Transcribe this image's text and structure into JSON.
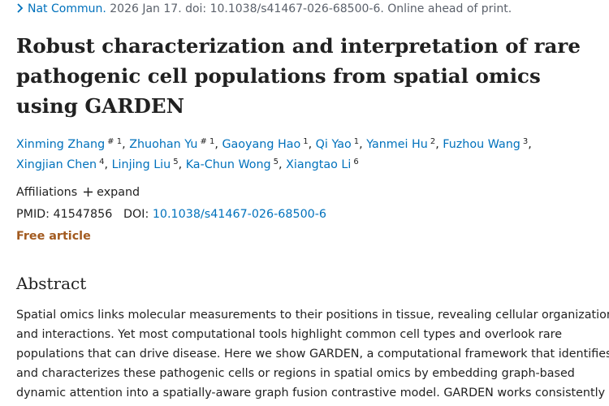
{
  "citation": {
    "journal": "Nat Commun.",
    "details": "2026 Jan 17. doi: 10.1038/s41467-026-68500-6. Online ahead of print."
  },
  "title": "Robust characterization and interpretation of rare pathogenic cell populations from spatial omics using GARDEN",
  "authors": [
    {
      "name": "Xinming Zhang",
      "sup": "# 1",
      "sep": ","
    },
    {
      "name": "Zhuohan Yu",
      "sup": "# 1",
      "sep": ","
    },
    {
      "name": "Gaoyang Hao",
      "sup": "1",
      "sep": ","
    },
    {
      "name": "Qi Yao",
      "sup": "1",
      "sep": ","
    },
    {
      "name": "Yanmei Hu",
      "sup": "2",
      "sep": ","
    },
    {
      "name": "Fuzhou Wang",
      "sup": "3",
      "sep": ","
    },
    {
      "name": "Xingjian Chen",
      "sup": "4",
      "sep": ","
    },
    {
      "name": "Linjing Liu",
      "sup": "5",
      "sep": ","
    },
    {
      "name": "Ka-Chun Wong",
      "sup": "5",
      "sep": ","
    },
    {
      "name": "Xiangtao Li",
      "sup": "6"
    }
  ],
  "affiliations": {
    "label": "Affiliations",
    "toggle": "expand"
  },
  "identifiers": {
    "pmid_label": "PMID:",
    "pmid": "41547856",
    "doi_label": "DOI:",
    "doi": "10.1038/s41467-026-68500-6"
  },
  "free_article": "Free article",
  "abstract": {
    "heading": "Abstract",
    "lines": [
      "Spatial omics links molecular measurements to their positions in tissue, revealing cellular organization",
      "and interactions. Yet most computational tools highlight common cell types and overlook rare",
      "populations that can drive disease. Here we show GARDEN, a computational framework that identifies",
      "and characterizes these pathogenic cells or regions in spatial omics by embedding graph-based",
      "dynamic attention into a spatially-aware graph fusion contrastive model. GARDEN works consistently"
    ]
  }
}
